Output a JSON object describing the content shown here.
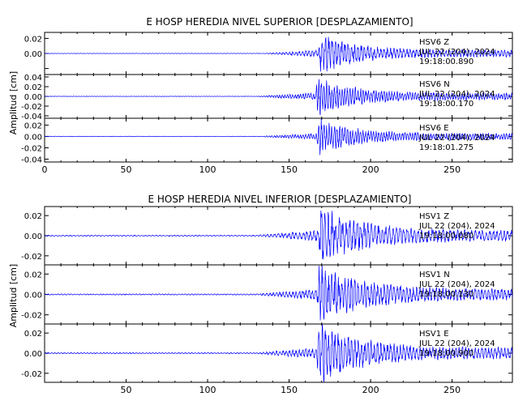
{
  "chart_data": [
    {
      "type": "line",
      "title": "E HOSP HEREDIA NIVEL SUPERIOR [DESPLAZAMIENTO]",
      "ylabel": "Amplitud [cm]",
      "xlim": [
        0,
        287
      ],
      "x_ticks": [
        0,
        50,
        100,
        150,
        200,
        250
      ],
      "x_tick_labels": [
        "0",
        "50",
        "100",
        "150",
        "200",
        "250"
      ],
      "panels": [
        {
          "station": "HSV6",
          "component": "Z",
          "date": "JUL 22 (204), 2024",
          "time": "19:18:00.890",
          "ylim": [
            -0.028,
            0.028
          ],
          "y_ticks": [
            -0.02,
            0.0,
            0.02
          ],
          "y_tick_labels": [
            "",
            "0.00",
            "0.02"
          ],
          "series": [
            {
              "color": "#0000ff",
              "noise": 0.00025,
              "onset": 134,
              "arrival": 168,
              "peak": 0.024,
              "decay": 22,
              "period": 2.0,
              "seed": 11
            }
          ]
        },
        {
          "station": "HSV6",
          "component": "N",
          "date": "JUL 22 (204), 2024",
          "time": "19:18:00.170",
          "ylim": [
            -0.045,
            0.045
          ],
          "y_ticks": [
            -0.04,
            -0.02,
            0.0,
            0.02,
            0.04
          ],
          "y_tick_labels": [
            "-0.04",
            "-0.02",
            "0.00",
            "0.02",
            "0.04"
          ],
          "series": [
            {
              "color": "#0000ff",
              "noise": 0.0005,
              "onset": 130,
              "arrival": 166,
              "peak": 0.038,
              "decay": 20,
              "period": 1.6,
              "seed": 23
            }
          ]
        },
        {
          "station": "HSV6",
          "component": "E",
          "date": "JUL 22 (204), 2024",
          "time": "19:18:01.275",
          "ylim": [
            -0.045,
            0.032
          ],
          "y_ticks": [
            -0.04,
            -0.02,
            0.0,
            0.02
          ],
          "y_tick_labels": [
            "-0.04",
            "-0.02",
            "0.00",
            "0.02"
          ],
          "series": [
            {
              "color": "#0000ff",
              "noise": 0.0005,
              "onset": 132,
              "arrival": 167,
              "peak": 0.03,
              "decay": 20,
              "period": 1.6,
              "seed": 37
            }
          ]
        }
      ]
    },
    {
      "type": "line",
      "title": "E HOSP HEREDIA NIVEL INFERIOR [DESPLAZAMIENTO]",
      "ylabel": "Amplitud [cm]",
      "xlim": [
        0,
        287
      ],
      "x_ticks": [
        50,
        100,
        150,
        200,
        250
      ],
      "x_tick_labels": [
        "50",
        "100",
        "150",
        "200",
        "250"
      ],
      "panels": [
        {
          "station": "HSV1",
          "component": "Z",
          "date": "JUL 22 (204), 2024",
          "time": "19:18:00.080",
          "ylim": [
            -0.029,
            0.029
          ],
          "y_ticks": [
            -0.02,
            0.0,
            0.02
          ],
          "y_tick_labels": [
            "-0.02",
            "0.00",
            "0.02"
          ],
          "series": [
            {
              "color": "#0000ff",
              "noise": 0.0006,
              "onset": 130,
              "arrival": 168,
              "peak": 0.027,
              "decay": 24,
              "period": 2.2,
              "seed": 51
            }
          ]
        },
        {
          "station": "HSV1",
          "component": "N",
          "date": "JUL 22 (204), 2024",
          "time": "19:18:00.130",
          "ylim": [
            -0.029,
            0.029
          ],
          "y_ticks": [
            -0.02,
            0.0,
            0.02
          ],
          "y_tick_labels": [
            "-0.02",
            "0.00",
            "0.02"
          ],
          "series": [
            {
              "color": "#0000ff",
              "noise": 0.0006,
              "onset": 130,
              "arrival": 167,
              "peak": 0.027,
              "decay": 26,
              "period": 2.0,
              "seed": 67
            }
          ]
        },
        {
          "station": "HSV1",
          "component": "E",
          "date": "JUL 22 (204), 2024",
          "time": "19:18:00.900",
          "ylim": [
            -0.029,
            0.029
          ],
          "y_ticks": [
            -0.02,
            0.0,
            0.02
          ],
          "y_tick_labels": [
            "-0.02",
            "0.00",
            "0.02"
          ],
          "series": [
            {
              "color": "#0000ff",
              "noise": 0.0006,
              "onset": 130,
              "arrival": 167,
              "peak": 0.027,
              "decay": 26,
              "period": 2.0,
              "seed": 83
            }
          ]
        }
      ]
    }
  ]
}
